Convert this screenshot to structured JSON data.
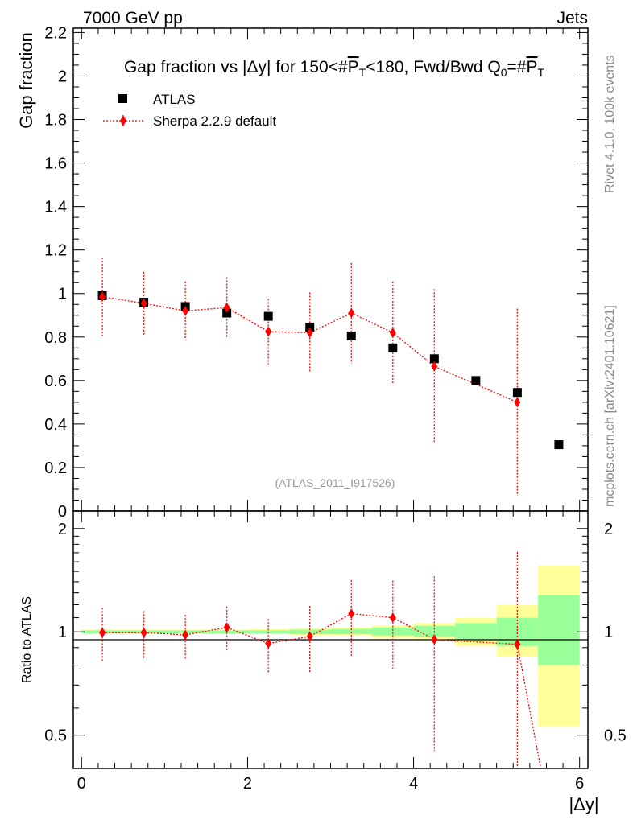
{
  "header": {
    "left": "7000 GeV pp",
    "right": "Jets"
  },
  "side": {
    "rivet": "Rivet 4.1.0,  100k events",
    "mcplots": "mcplots.cern.ch [arXiv:2401.10621]"
  },
  "chart_data": {
    "type": "scatter",
    "title_parts": [
      "Gap fraction vs |",
      "Δ",
      "y| for 150<#",
      "P",
      "T",
      "<180, Fwd/Bwd Q",
      "0",
      "=#",
      "P",
      "T"
    ],
    "analysis_id": "(ATLAS_2011_I917526)",
    "ylabel": "Gap fraction",
    "ratio_ylabel": "Ratio to ATLAS",
    "xlabel": "|Δy|",
    "xlim": [
      -0.1,
      6.1
    ],
    "ylim": [
      0,
      2.22
    ],
    "ratio_ylim": [
      0.4,
      2.25
    ],
    "x_ticks": [
      0,
      2,
      4,
      6
    ],
    "x_tick_labels": [
      "0",
      "2",
      "4",
      "6"
    ],
    "y_ticks": [
      0,
      0.2,
      0.4,
      0.6,
      0.8,
      1,
      1.2,
      1.4,
      1.6,
      1.8,
      2,
      2.2
    ],
    "y_tick_labels": [
      "0",
      "0.2",
      "0.4",
      "0.6",
      "0.8",
      "1",
      "1.2",
      "1.4",
      "1.6",
      "1.8",
      "2",
      "2.2"
    ],
    "ratio_ticks": [
      0.5,
      1,
      2
    ],
    "ratio_tick_labels": [
      "0.5",
      "1",
      "2"
    ],
    "legend": {
      "position": "top-left",
      "entries": [
        "ATLAS",
        "Sherpa 2.2.9 default"
      ]
    },
    "series": [
      {
        "name": "ATLAS",
        "marker": "square",
        "color": "#000000",
        "x": [
          0.25,
          0.75,
          1.25,
          1.75,
          2.25,
          2.75,
          3.25,
          3.75,
          4.25,
          4.75,
          5.25,
          5.75
        ],
        "values": [
          0.99,
          0.96,
          0.94,
          0.91,
          0.895,
          0.845,
          0.805,
          0.75,
          0.7,
          0.6,
          0.545,
          0.305
        ]
      },
      {
        "name": "Sherpa 2.2.9 default",
        "marker": "diamond",
        "color": "#ff0000",
        "x": [
          0.25,
          0.75,
          1.25,
          1.75,
          2.25,
          2.75,
          3.25,
          3.75,
          4.25,
          5.25
        ],
        "values": [
          0.985,
          0.955,
          0.92,
          0.935,
          0.825,
          0.82,
          0.91,
          0.82,
          0.665,
          0.5
        ],
        "err_low": [
          0.18,
          0.15,
          0.135,
          0.14,
          0.15,
          0.18,
          0.23,
          0.24,
          0.35,
          0.43
        ],
        "err_high": [
          0.18,
          0.145,
          0.135,
          0.14,
          0.15,
          0.185,
          0.23,
          0.235,
          0.355,
          0.43
        ]
      }
    ],
    "ratio": {
      "x": [
        0.25,
        0.75,
        1.25,
        1.75,
        2.25,
        2.75,
        3.25,
        3.75,
        4.25,
        5.25
      ],
      "values": [
        0.995,
        0.995,
        0.98,
        1.03,
        0.925,
        0.97,
        1.13,
        1.1,
        0.95,
        0.92
      ],
      "err_low": [
        0.18,
        0.16,
        0.145,
        0.15,
        0.165,
        0.21,
        0.285,
        0.32,
        0.5,
        0.79
      ],
      "err_high": [
        0.18,
        0.155,
        0.14,
        0.155,
        0.165,
        0.22,
        0.285,
        0.31,
        0.5,
        0.79
      ],
      "tail": {
        "x": [
          5.25,
          5.75
        ],
        "values": [
          0.92,
          0.21
        ]
      },
      "bands": {
        "x_edges": [
          0,
          0.5,
          1,
          1.5,
          2,
          2.5,
          3,
          3.5,
          4,
          4.5,
          5,
          5.5,
          6
        ],
        "yellow_low": [
          0.985,
          0.985,
          0.985,
          0.985,
          0.985,
          0.98,
          0.975,
          0.96,
          0.945,
          0.91,
          0.85,
          0.53
        ],
        "yellow_high": [
          1.015,
          1.015,
          1.015,
          1.015,
          1.02,
          1.025,
          1.03,
          1.045,
          1.06,
          1.1,
          1.2,
          1.56
        ],
        "green_low": [
          0.99,
          0.99,
          0.99,
          0.99,
          0.99,
          0.985,
          0.985,
          0.975,
          0.97,
          0.95,
          0.91,
          0.8
        ],
        "green_high": [
          1.01,
          1.01,
          1.01,
          1.01,
          1.01,
          1.015,
          1.02,
          1.03,
          1.04,
          1.06,
          1.1,
          1.28
        ]
      }
    }
  }
}
